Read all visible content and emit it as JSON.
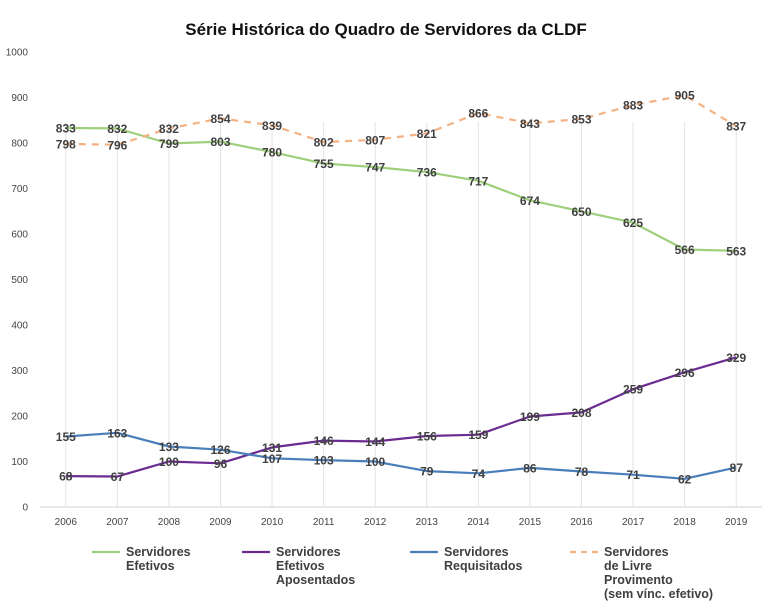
{
  "chart_data": {
    "type": "line",
    "title": "Série Histórica do Quadro de Servidores da CLDF",
    "xlabel": "",
    "ylabel": "",
    "ylim": [
      0,
      1000
    ],
    "yticks": [
      0,
      100,
      200,
      300,
      400,
      500,
      600,
      700,
      800,
      900,
      1000
    ],
    "categories": [
      "2006",
      "2007",
      "2008",
      "2009",
      "2010",
      "2011",
      "2012",
      "2013",
      "2014",
      "2015",
      "2016",
      "2017",
      "2018",
      "2019"
    ],
    "grid": "vertical",
    "legend_position": "bottom",
    "series": [
      {
        "name": "Servidores Efetivos",
        "legend_lines": [
          "Servidores",
          "Efetivos"
        ],
        "color": "#9ed07c",
        "dash": false,
        "values": [
          833,
          832,
          799,
          803,
          780,
          755,
          747,
          736,
          717,
          674,
          650,
          625,
          566,
          563
        ]
      },
      {
        "name": "Servidores Efetivos Aposentados",
        "legend_lines": [
          "Servidores",
          "Efetivos",
          "Aposentados"
        ],
        "color": "#6a2c91",
        "dash": false,
        "values": [
          68,
          67,
          100,
          96,
          131,
          146,
          144,
          156,
          159,
          199,
          208,
          259,
          296,
          329
        ]
      },
      {
        "name": "Servidores Requisitados",
        "legend_lines": [
          "Servidores",
          "Requisitados"
        ],
        "color": "#4a7ebb",
        "dash": false,
        "values": [
          155,
          163,
          133,
          126,
          107,
          103,
          100,
          79,
          74,
          86,
          78,
          71,
          62,
          87
        ]
      },
      {
        "name": "Servidores de Livre Provimento (sem vínc. efetivo)",
        "legend_lines": [
          "Servidores",
          "de Livre",
          "Provimento",
          "(sem vínc. efetivo)"
        ],
        "color": "#f4b183",
        "dash": true,
        "values": [
          798,
          796,
          832,
          854,
          839,
          802,
          807,
          821,
          866,
          843,
          853,
          883,
          905,
          837
        ]
      }
    ]
  }
}
